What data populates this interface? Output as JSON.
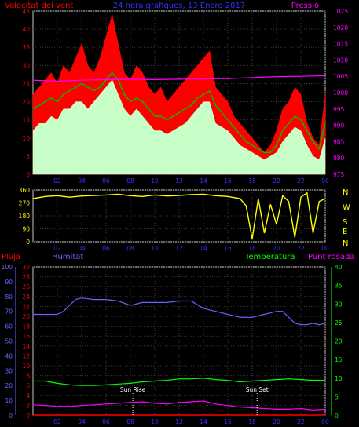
{
  "header": {
    "left_label": "Velocitat del vent",
    "center_label": "24 hora gràfiques, 13 Enero 2017",
    "right_label": "Pressió"
  },
  "colors": {
    "background": "#000000",
    "frame": "#c8c8c8",
    "grid": "#3a3a3a",
    "wind_gust": "#ff0000",
    "wind_avg": "#c8ffc8",
    "wind_mean_line": "#00c000",
    "pressure": "#ff00ff",
    "direction": "#ffff00",
    "rain": "#ff0000",
    "humidity": "#6464ff",
    "temperature": "#00ff00",
    "dewpoint": "#ff00ff",
    "title_blue": "#3232ff",
    "label_white": "#ffffff"
  },
  "middle": {
    "side_labels": [
      "N",
      "W",
      "S",
      "E",
      "N"
    ]
  },
  "bottom": {
    "left_label_rain": "Pluja",
    "left_label_humidity": "Humitat",
    "right_label_temp": "Temperatura",
    "right_label_dew": "Punt rosada",
    "sunrise_label": "Sun Rise",
    "sunset_label": "Sun Set"
  },
  "chart_data": [
    {
      "type": "area",
      "x_ticks": [
        "02",
        "04",
        "06",
        "08",
        "10",
        "12",
        "14",
        "16",
        "18",
        "20",
        "22",
        "00"
      ],
      "xlim": [
        0,
        24
      ],
      "left_axis": {
        "ticks": [
          0,
          5,
          10,
          15,
          20,
          25,
          30,
          35,
          40,
          45
        ],
        "ylim": [
          0,
          45
        ]
      },
      "right_axis": {
        "ticks": [
          975,
          980,
          985,
          990,
          995,
          1000,
          1005,
          1010,
          1015,
          1020,
          1025
        ],
        "ylim": [
          975,
          1025
        ]
      },
      "series": [
        {
          "name": "Velocitat del vent",
          "axis": "left",
          "x": [
            0,
            0.5,
            1,
            1.5,
            2,
            2.5,
            3,
            3.5,
            4,
            4.5,
            5,
            5.5,
            6,
            6.5,
            7,
            7.5,
            8,
            8.5,
            9,
            9.5,
            10,
            10.5,
            11,
            11.5,
            12,
            12.5,
            13,
            13.5,
            14,
            14.5,
            15,
            15.5,
            16,
            16.5,
            17,
            17.5,
            18,
            18.5,
            19,
            19.5,
            20,
            20.5,
            21,
            21.5,
            22,
            22.5,
            23,
            23.5,
            24
          ],
          "gust": [
            22,
            24,
            26,
            28,
            25,
            30,
            28,
            32,
            36,
            30,
            28,
            32,
            38,
            44,
            36,
            28,
            26,
            30,
            28,
            24,
            22,
            24,
            20,
            22,
            24,
            26,
            28,
            30,
            32,
            34,
            24,
            22,
            20,
            16,
            14,
            12,
            10,
            8,
            6,
            8,
            12,
            18,
            20,
            24,
            22,
            14,
            10,
            8,
            22
          ],
          "avg": [
            12,
            14,
            14,
            16,
            15,
            18,
            18,
            20,
            20,
            18,
            20,
            22,
            24,
            26,
            22,
            18,
            16,
            18,
            16,
            14,
            12,
            12,
            11,
            12,
            13,
            14,
            16,
            18,
            20,
            20,
            14,
            13,
            12,
            10,
            8,
            7,
            6,
            5,
            4,
            5,
            6,
            9,
            11,
            13,
            12,
            8,
            5,
            4,
            10
          ],
          "mean": [
            18,
            19,
            20,
            21,
            20,
            22,
            23,
            24,
            25,
            24,
            23,
            24,
            26,
            28,
            26,
            22,
            20,
            21,
            20,
            18,
            16,
            16,
            15,
            16,
            17,
            18,
            19,
            21,
            22,
            23,
            19,
            17,
            15,
            13,
            11,
            9,
            8,
            7,
            6,
            6,
            8,
            12,
            14,
            16,
            15,
            12,
            9,
            7,
            14
          ]
        },
        {
          "name": "Pressió",
          "axis": "right",
          "x": [
            0,
            2,
            4,
            6,
            8,
            10,
            12,
            14,
            16,
            18,
            20,
            22,
            24
          ],
          "values": [
            1003.8,
            1003.5,
            1003.8,
            1004.0,
            1004.1,
            1004.0,
            1004.1,
            1004.2,
            1004.3,
            1004.6,
            1004.9,
            1005.0,
            1005.2
          ]
        }
      ]
    },
    {
      "type": "line",
      "x_ticks": [
        "02",
        "04",
        "06",
        "08",
        "10",
        "12",
        "14",
        "16",
        "18",
        "20",
        "22",
        "00"
      ],
      "y_ticks": [
        0,
        90,
        180,
        270,
        360
      ],
      "ylim": [
        0,
        360
      ],
      "series": [
        {
          "name": "wind direction",
          "x": [
            0,
            1,
            2,
            3,
            4,
            5,
            6,
            7,
            8,
            9,
            10,
            11,
            12,
            13,
            14,
            15,
            16,
            17,
            17.5,
            18,
            18.5,
            19,
            19.5,
            20,
            20.5,
            21,
            21.5,
            22,
            22.5,
            23,
            23.5,
            24
          ],
          "values": [
            300,
            315,
            320,
            310,
            318,
            322,
            325,
            330,
            320,
            315,
            325,
            318,
            322,
            328,
            330,
            320,
            315,
            300,
            250,
            20,
            300,
            60,
            260,
            120,
            320,
            280,
            30,
            310,
            340,
            60,
            280,
            300
          ]
        }
      ]
    },
    {
      "type": "line",
      "x_ticks": [
        "02",
        "04",
        "06",
        "08",
        "10",
        "12",
        "14",
        "16",
        "18",
        "20",
        "22",
        "00"
      ],
      "left_axis_rain": {
        "ticks": [
          0,
          2,
          4,
          6,
          8,
          10,
          12,
          14,
          16,
          18,
          20,
          22,
          24,
          26,
          28,
          30
        ],
        "ylim": [
          0,
          30
        ]
      },
      "left_axis_humidity": {
        "ticks": [
          0,
          10,
          20,
          30,
          40,
          50,
          60,
          70,
          80,
          90,
          100
        ],
        "ylim": [
          0,
          100
        ]
      },
      "right_axis": {
        "ticks": [
          0,
          5,
          10,
          15,
          20,
          25,
          30,
          35,
          40
        ],
        "ylim": [
          0,
          40
        ]
      },
      "series": [
        {
          "name": "Humitat",
          "axis": "humidity",
          "x": [
            0,
            1,
            2,
            2.5,
            3,
            3.5,
            4,
            5,
            6,
            7,
            8,
            9,
            10,
            11,
            12,
            13,
            14,
            15,
            16,
            17,
            18,
            19,
            20,
            20.5,
            21,
            21.5,
            22,
            22.5,
            23,
            23.5,
            24
          ],
          "values": [
            68,
            68,
            68,
            70,
            74,
            78,
            79,
            78,
            78,
            77,
            74,
            76,
            76,
            76,
            77,
            77,
            72,
            70,
            68,
            66,
            66,
            68,
            70,
            70,
            66,
            62,
            61,
            61,
            62,
            61,
            62
          ]
        },
        {
          "name": "Temperatura",
          "axis": "right",
          "x": [
            0,
            1,
            2,
            3,
            4,
            5,
            6,
            7,
            8,
            9,
            10,
            11,
            12,
            13,
            14,
            15,
            16,
            17,
            18,
            19,
            20,
            21,
            22,
            23,
            24
          ],
          "values": [
            9.2,
            9.2,
            8.6,
            8.2,
            8.0,
            8.0,
            8.2,
            8.4,
            8.6,
            9.0,
            9.2,
            9.4,
            9.8,
            9.8,
            10.0,
            9.6,
            9.4,
            9.0,
            9.2,
            9.4,
            9.6,
            9.8,
            9.6,
            9.4,
            9.4
          ]
        },
        {
          "name": "Punt rosada",
          "axis": "right",
          "x": [
            0,
            1,
            2,
            3,
            4,
            5,
            6,
            7,
            8,
            9,
            10,
            11,
            12,
            13,
            14,
            15,
            16,
            17,
            18,
            19,
            20,
            21,
            22,
            23,
            24
          ],
          "values": [
            2.8,
            2.6,
            2.4,
            2.4,
            2.6,
            2.8,
            3.0,
            3.2,
            3.4,
            3.6,
            3.2,
            3.0,
            3.4,
            3.6,
            3.8,
            3.0,
            2.6,
            2.2,
            2.0,
            1.8,
            1.6,
            1.6,
            1.8,
            1.4,
            1.6
          ]
        },
        {
          "name": "Pluja",
          "axis": "rain",
          "x": [
            0,
            24
          ],
          "values": [
            0,
            0
          ]
        }
      ],
      "markers": [
        {
          "label": "Sun Rise",
          "x": 8.2
        },
        {
          "label": "Sun Set",
          "x": 18.4
        }
      ]
    }
  ]
}
